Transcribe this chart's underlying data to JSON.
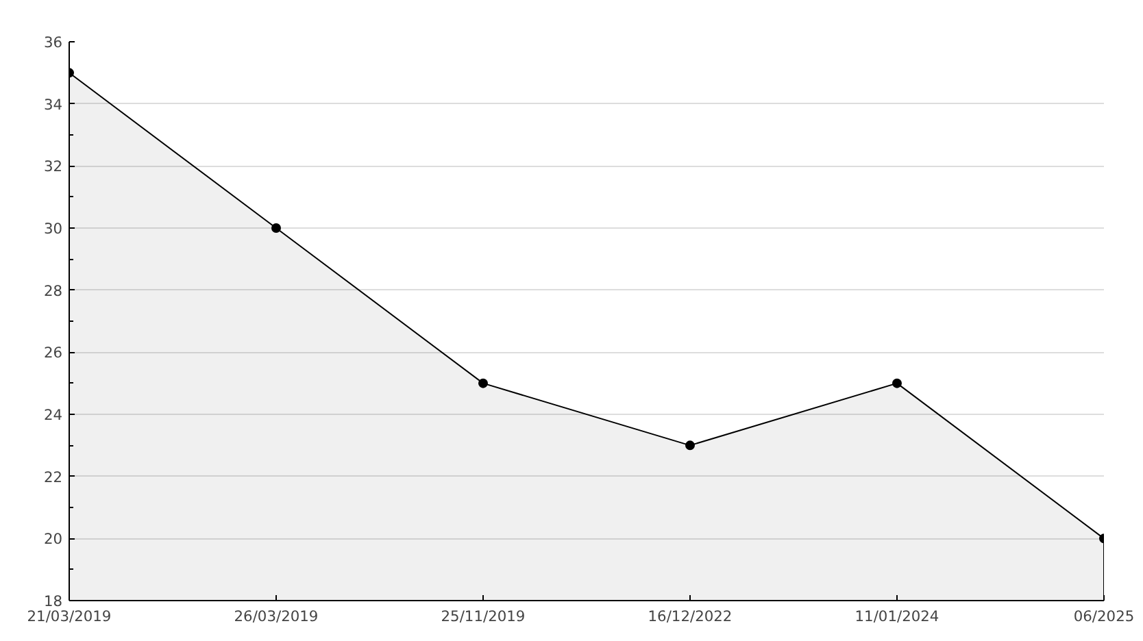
{
  "chart_data": {
    "type": "area",
    "categories": [
      "21/03/2019",
      "26/03/2019",
      "25/11/2019",
      "16/12/2022",
      "11/01/2024",
      "06/2025"
    ],
    "series": [
      {
        "color": "#000000",
        "values": [
          35,
          30,
          25,
          23,
          25,
          20
        ]
      }
    ],
    "ylim": [
      18,
      36
    ],
    "yticks": [
      18,
      20,
      22,
      24,
      26,
      28,
      30,
      32,
      34,
      36
    ],
    "grid": "y",
    "marker": "circle",
    "line_style": "solid"
  }
}
